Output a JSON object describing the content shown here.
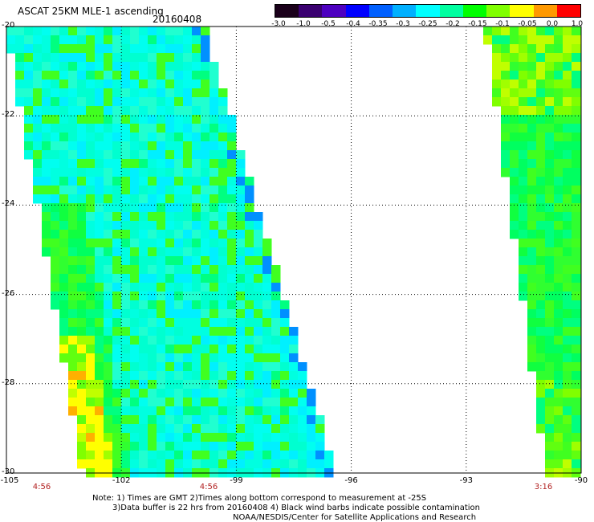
{
  "header": {
    "title": "ASCAT 25KM MLE-1 ascending",
    "date": "20160408"
  },
  "colorbar": {
    "labels": [
      "-3.0",
      "-1.0",
      "-0.5",
      "-0.4",
      "-0.35",
      "-0.3",
      "-0.25",
      "-0.2",
      "-0.15",
      "-0.1",
      "-0.05",
      "0.0",
      "1.0"
    ],
    "colors": [
      "#1a001a",
      "#3a0070",
      "#4d00c0",
      "#0000ff",
      "#0060ff",
      "#00b0ff",
      "#00ffff",
      "#00ffa0",
      "#00ff00",
      "#80ff00",
      "#ffff00",
      "#ff9900",
      "#ff0000"
    ]
  },
  "map": {
    "lat_labels": [
      "-20",
      "-22",
      "-24",
      "-26",
      "-28",
      "-30"
    ],
    "lon_labels": [
      "-105",
      "-102",
      "-99",
      "-96",
      "-93",
      "-90"
    ],
    "time_labels": [
      "4:56",
      "4:56",
      "3:16"
    ],
    "lat_range": [
      -30,
      -20
    ],
    "lon_range": [
      -105,
      -90
    ],
    "grid": "dotted"
  },
  "notes": {
    "line1": "Note: 1) Times are GMT 2)Times along bottom correspond to measurement at -25S",
    "line2": "3)Data buffer is 22 hrs from 20160408 4) Black wind barbs indicate possible contamination",
    "line3": "NOAA/NESDIS/Center for Satellite Applications and Research"
  }
}
